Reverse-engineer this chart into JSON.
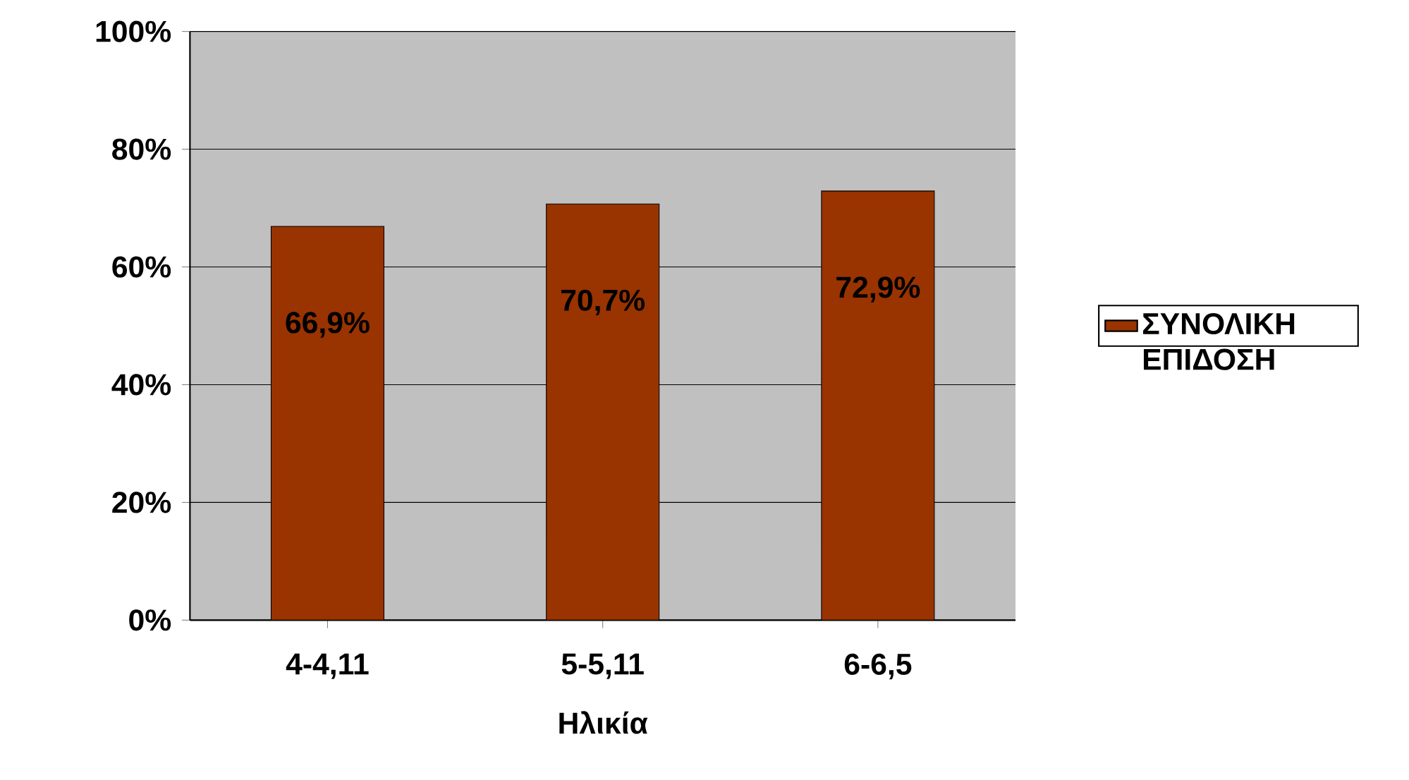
{
  "chart_data": {
    "type": "bar",
    "xlabel": "Ηλικία",
    "categories": [
      "4-4,11",
      "5-5,11",
      "6-6,5"
    ],
    "series": [
      {
        "name": "ΣΥΝΟΛΙΚΗ ΕΠΙΔΟΣΗ",
        "color": "#993300",
        "values": [
          66.9,
          70.7,
          72.9
        ],
        "value_labels": [
          "66,9%",
          "70,7%",
          "72,9%"
        ]
      }
    ],
    "ylim": [
      0,
      100
    ],
    "yticks": [
      {
        "value": 0,
        "label": "0%"
      },
      {
        "value": 20,
        "label": "20%"
      },
      {
        "value": 40,
        "label": "40%"
      },
      {
        "value": 60,
        "label": "60%"
      },
      {
        "value": 80,
        "label": "80%"
      },
      {
        "value": 100,
        "label": "100%"
      }
    ],
    "grid": "y",
    "legend": "right"
  }
}
